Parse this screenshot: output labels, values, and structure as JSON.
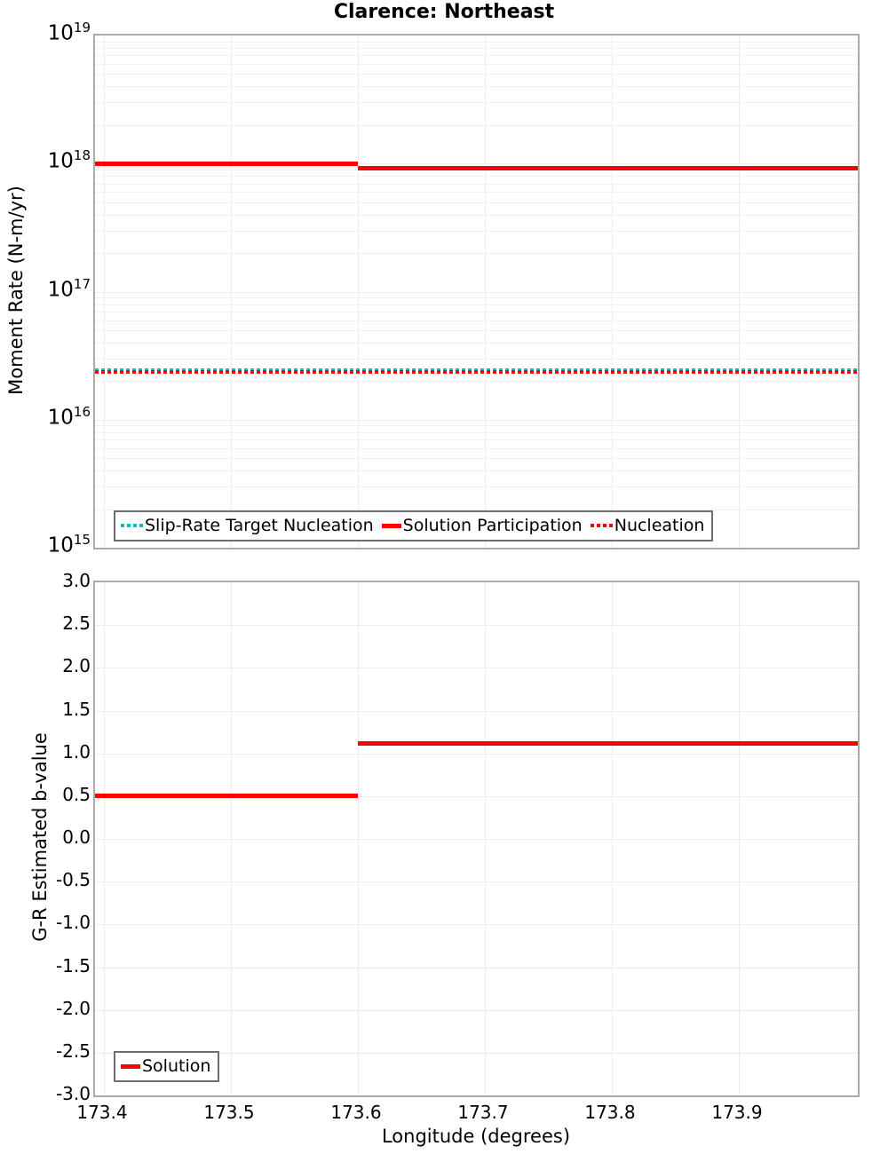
{
  "title": "Clarence: Northeast",
  "colors": {
    "solution_red": "#ff0000",
    "target_teal": "#00bfbf",
    "grid": "#ececec",
    "axis_border": "#aaaaaa",
    "legend_border": "#6f6f6f",
    "text": "#000000"
  },
  "top_chart": {
    "ylabel": "Moment Rate (N-m/yr)",
    "yticks": [
      {
        "base": "10",
        "exp": "19"
      },
      {
        "base": "10",
        "exp": "18"
      },
      {
        "base": "10",
        "exp": "17"
      },
      {
        "base": "10",
        "exp": "16"
      },
      {
        "base": "10",
        "exp": "15"
      }
    ],
    "legend": [
      {
        "label": "Slip-Rate Target Nucleation",
        "swatch": "dotted",
        "color": "#00bfbf"
      },
      {
        "label": "Solution Participation",
        "swatch": "solid",
        "color": "#ff0000"
      },
      {
        "label": "Nucleation",
        "swatch": "dotted",
        "color": "#ff0000"
      }
    ]
  },
  "bottom_chart": {
    "ylabel": "G-R Estimated b-value",
    "xlabel": "Longitude (degrees)",
    "yticks": [
      "3.0",
      "2.5",
      "2.0",
      "1.5",
      "1.0",
      "0.5",
      "0.0",
      "-0.5",
      "-1.0",
      "-1.5",
      "-2.0",
      "-2.5",
      "-3.0"
    ],
    "xticks": [
      "173.4",
      "173.5",
      "173.6",
      "173.7",
      "173.8",
      "173.9"
    ],
    "legend": [
      {
        "label": "Solution",
        "swatch": "solid",
        "color": "#ff0000"
      }
    ]
  },
  "chart_data": [
    {
      "type": "line",
      "title": "Clarence: Northeast",
      "xlabel": "",
      "ylabel": "Moment Rate (N-m/yr)",
      "yscale": "log",
      "ylim": [
        1000000000000000.0,
        1e+19
      ],
      "xlim": [
        173.393,
        173.994
      ],
      "grid": true,
      "legend_position": "lower left inside",
      "series": [
        {
          "name": "Slip-Rate Target Nucleation",
          "linestyle": "dotted",
          "color": "#00bfbf",
          "x": [
            173.393,
            173.994
          ],
          "y": [
            2.4e+16,
            2.4e+16
          ]
        },
        {
          "name": "Solution Participation",
          "linestyle": "solid",
          "color": "#ff0000",
          "x": [
            173.393,
            173.6,
            173.6,
            173.994
          ],
          "y": [
            1e+18,
            1e+18,
            9.2e+17,
            9.2e+17
          ]
        },
        {
          "name": "Nucleation",
          "linestyle": "dotted",
          "color": "#ff0000",
          "x": [
            173.393,
            173.994
          ],
          "y": [
            2.4e+16,
            2.4e+16
          ]
        }
      ]
    },
    {
      "type": "line",
      "xlabel": "Longitude (degrees)",
      "ylabel": "G-R Estimated b-value",
      "yscale": "linear",
      "ylim": [
        -3.0,
        3.0
      ],
      "xlim": [
        173.393,
        173.994
      ],
      "xticks": [
        173.4,
        173.5,
        173.6,
        173.7,
        173.8,
        173.9
      ],
      "yticks": [
        3.0,
        2.5,
        2.0,
        1.5,
        1.0,
        0.5,
        0.0,
        -0.5,
        -1.0,
        -1.5,
        -2.0,
        -2.5,
        -3.0
      ],
      "grid": true,
      "legend_position": "lower left inside",
      "series": [
        {
          "name": "Solution",
          "linestyle": "solid",
          "color": "#ff0000",
          "x": [
            173.393,
            173.6,
            173.6,
            173.994
          ],
          "y": [
            0.5,
            0.5,
            1.12,
            1.12
          ]
        }
      ]
    }
  ]
}
